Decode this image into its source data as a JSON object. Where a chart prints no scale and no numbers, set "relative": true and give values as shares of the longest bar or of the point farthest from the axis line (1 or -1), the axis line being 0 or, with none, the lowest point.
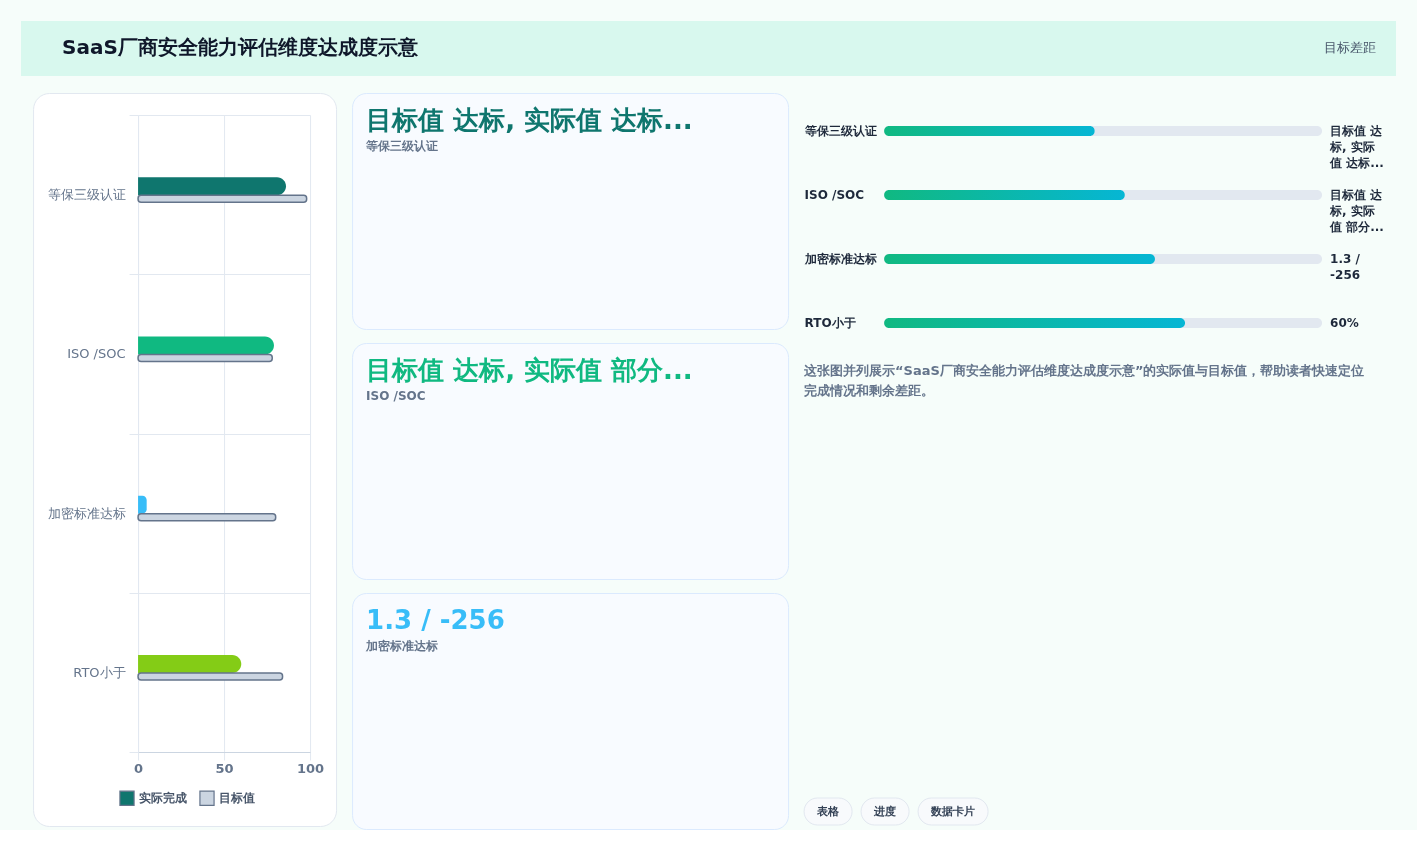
{
  "chart_data": [
    {
      "type": "other",
      "title": "SaaS厂商安全能力评估维度达成度示意",
      "annotations": [
        "目标差距"
      ]
    },
    {
      "type": "bar",
      "orientation": "horizontal",
      "categories": [
        "等保三级认证",
        "ISO /SOC",
        "加密标准达标",
        "RTO小于"
      ],
      "series": [
        {
          "name": "实际完成",
          "colors": [
            "#0f766e",
            "#10b981",
            "#38bdf8",
            "#84cc16"
          ],
          "values": [
            86,
            79,
            5,
            60
          ]
        },
        {
          "name": "目标值",
          "color": "#cbd5e1",
          "values": [
            98,
            78,
            80,
            84
          ]
        }
      ],
      "xlim": [
        0,
        100
      ],
      "xticks": [
        0,
        50,
        100
      ],
      "grid": true,
      "legend": "bottom"
    },
    {
      "type": "other",
      "title": "目标值 达标, 实际值 达标...",
      "subtitle": "等保三级认证"
    },
    {
      "type": "other",
      "title": "目标值 达标, 实际值 部分...",
      "subtitle": "ISO /SOC"
    },
    {
      "type": "other",
      "title": "1.3 / -256",
      "subtitle": "加密标准达标"
    },
    {
      "type": "bar",
      "orientation": "horizontal",
      "relative": true,
      "categories": [
        "等保三级认证",
        "ISO /SOC",
        "加密标准达标",
        "RTO小于"
      ],
      "values": [
        0.7,
        0.8,
        0.9,
        1.0
      ],
      "color": "#10b981",
      "annotations": [
        "目标值 达标, 实际值 达标...",
        "目标值 达标, 实际值 部分...",
        "1.3 / -256",
        "60%",
        "这张图并列展示“SaaS厂商安全能力评估维度达成度示意”的实际值与目标值，帮助读者快速定位完成情况和剩余差距。",
        "表格",
        "进度",
        "数据卡片"
      ]
    }
  ]
}
